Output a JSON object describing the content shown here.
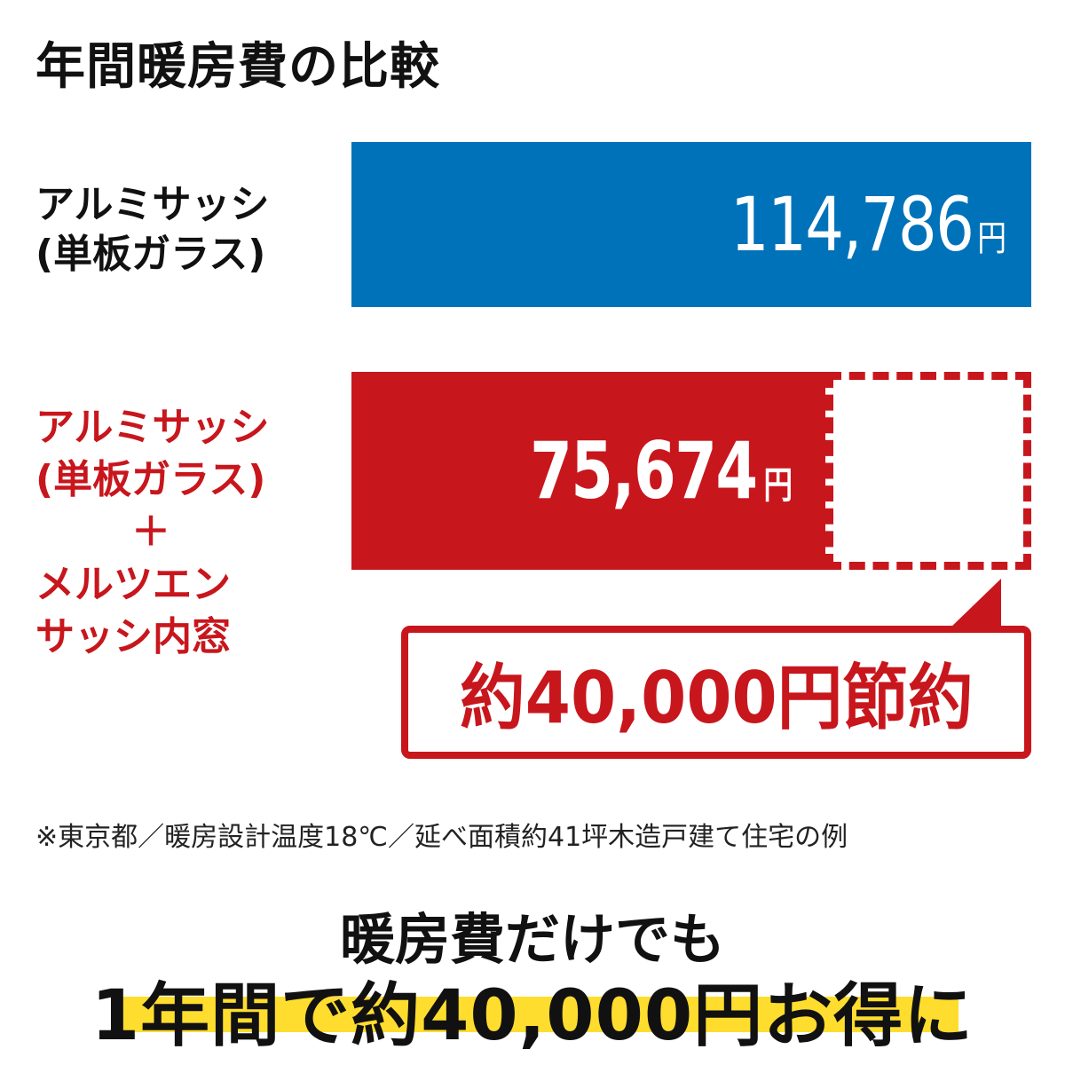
{
  "title": "年間暖房費の比較",
  "colors": {
    "standard_bar": "#0072B9",
    "improved_bar": "#C8161D",
    "highlight": "#FFDD2E",
    "text": "#111111"
  },
  "bars": [
    {
      "label_line1": "アルミサッシ",
      "label_line2": "(単板ガラス)",
      "value_text": "114,786",
      "unit": "円"
    },
    {
      "label_line1": "アルミサッシ",
      "label_line2": "(単板ガラス)",
      "label_plus": "＋",
      "label_line3": "メルツエン",
      "label_line4": "サッシ内窓",
      "value_text": "75,674",
      "unit": "円"
    }
  ],
  "callout": {
    "text": "約40,000円節約"
  },
  "footnote": "※東京都／暖房設計温度18℃／延べ面積約41坪木造戸建て住宅の例",
  "headline": {
    "line1": "暖房費だけでも",
    "line2": "1年間で約40,000円お得に"
  },
  "chart_data": {
    "type": "bar",
    "orientation": "horizontal",
    "title": "年間暖房費の比較",
    "categories": [
      "アルミサッシ(単板ガラス)",
      "アルミサッシ(単板ガラス)＋メルツエンサッシ内窓"
    ],
    "values": [
      114786,
      75674
    ],
    "unit": "円",
    "colors": [
      "#0072B9",
      "#C8161D"
    ],
    "annotations": [
      {
        "text": "約40,000円節約",
        "target": "difference between bars (dashed region)"
      }
    ],
    "savings_approx": 40000,
    "grid": false,
    "legend": "none",
    "xlabel": "",
    "ylabel": "",
    "note": "※東京都／暖房設計温度18℃／延べ面積約41坪木造戸建て住宅の例"
  }
}
